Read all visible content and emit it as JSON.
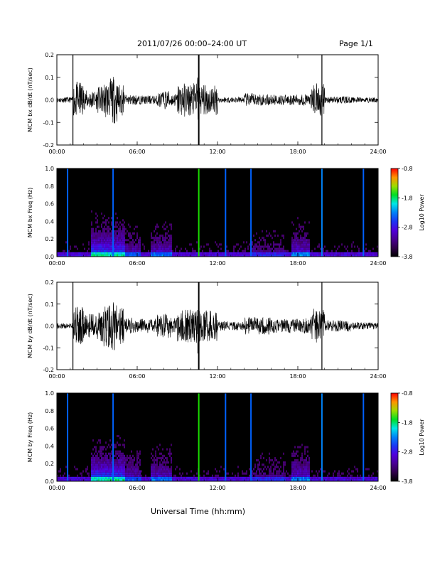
{
  "header": {
    "title": "2011/07/26  00:00–24:00 UT",
    "page": "Page 1/1"
  },
  "footer": {
    "xlabel": "Universal Time (hh:mm)"
  },
  "chart_data": [
    {
      "type": "line",
      "ylabel": "MCM bx dB/dt (nT/sec)",
      "xlim": [
        0,
        24
      ],
      "ylim": [
        -0.2,
        0.2
      ],
      "xticks": [
        "00:00",
        "06:00",
        "12:00",
        "18:00",
        "24:00"
      ],
      "yticks": [
        "0.2",
        "0.1",
        "0.0",
        "-0.1",
        "-0.2"
      ],
      "series": [
        {
          "x": [
            0,
            1.2,
            1.3,
            2,
            3,
            3.5,
            4,
            4.5,
            5,
            6,
            7.5,
            8,
            8.5,
            9,
            10.5,
            10.6,
            12,
            14,
            15,
            16,
            18,
            19,
            19.8,
            20,
            22,
            24
          ],
          "y": [
            0.0,
            0.03,
            -0.2,
            0.05,
            0.08,
            0.1,
            0.15,
            -0.17,
            0.05,
            0.02,
            0.04,
            0.07,
            -0.06,
            0.03,
            0.2,
            -0.2,
            0.01,
            0.03,
            0.06,
            0.02,
            0.05,
            0.03,
            0.2,
            0.02,
            0.03,
            0.0
          ]
        }
      ]
    },
    {
      "type": "heatmap",
      "ylabel": "MCM bx Freq (Hz)",
      "xlim": [
        0,
        24
      ],
      "ylim": [
        0,
        1.0
      ],
      "xticks": [
        "00:00",
        "06:00",
        "12:00",
        "18:00",
        "24:00"
      ],
      "yticks": [
        "1.0",
        "0.8",
        "0.6",
        "0.4",
        "0.2",
        "0.0"
      ],
      "colorbar": {
        "label": "Log10 Power",
        "range": [
          -3.8,
          -0.8
        ],
        "ticks": [
          "-0.8",
          "-1.8",
          "-2.8",
          "-3.8"
        ]
      },
      "vertical_lines": [
        {
          "x": 0.8,
          "level": -2.4
        },
        {
          "x": 4.2,
          "level": -2.4
        },
        {
          "x": 10.6,
          "level": -1.6
        },
        {
          "x": 12.6,
          "level": -2.4
        },
        {
          "x": 14.5,
          "level": -2.4
        },
        {
          "x": 19.8,
          "level": -2.3
        },
        {
          "x": 22.9,
          "level": -2.4
        }
      ]
    },
    {
      "type": "line",
      "ylabel": "MCM by dB/dt (nT/sec)",
      "xlim": [
        0,
        24
      ],
      "ylim": [
        -0.2,
        0.2
      ],
      "xticks": [
        "00:00",
        "06:00",
        "12:00",
        "18:00",
        "24:00"
      ],
      "yticks": [
        "0.2",
        "0.1",
        "0.0",
        "-0.1",
        "-0.2"
      ],
      "series": [
        {
          "x": [
            0,
            1.2,
            1.3,
            2,
            3,
            3.5,
            4,
            4.5,
            5,
            6,
            7.5,
            8,
            8.5,
            9,
            10.5,
            10.6,
            12,
            14,
            15,
            16,
            18,
            19,
            19.8,
            20,
            22,
            24
          ],
          "y": [
            0.0,
            0.04,
            -0.2,
            0.07,
            0.1,
            0.12,
            0.18,
            -0.18,
            0.08,
            0.04,
            0.06,
            0.1,
            -0.08,
            0.04,
            0.2,
            -0.2,
            0.02,
            0.05,
            0.08,
            0.04,
            0.06,
            0.05,
            0.2,
            0.03,
            0.05,
            0.0
          ]
        }
      ]
    },
    {
      "type": "heatmap",
      "ylabel": "MCM by Freq (Hz)",
      "xlim": [
        0,
        24
      ],
      "ylim": [
        0,
        1.0
      ],
      "xticks": [
        "00:00",
        "06:00",
        "12:00",
        "18:00",
        "24:00"
      ],
      "yticks": [
        "1.0",
        "0.8",
        "0.6",
        "0.4",
        "0.2",
        "0.0"
      ],
      "colorbar": {
        "label": "Log10 Power",
        "range": [
          -3.8,
          -0.8
        ],
        "ticks": [
          "-0.8",
          "-1.8",
          "-2.8",
          "-3.8"
        ]
      },
      "vertical_lines": [
        {
          "x": 0.8,
          "level": -2.4
        },
        {
          "x": 4.2,
          "level": -2.4
        },
        {
          "x": 10.6,
          "level": -1.6
        },
        {
          "x": 12.6,
          "level": -2.4
        },
        {
          "x": 14.5,
          "level": -2.4
        },
        {
          "x": 19.8,
          "level": -2.3
        },
        {
          "x": 22.9,
          "level": -2.4
        }
      ]
    }
  ]
}
